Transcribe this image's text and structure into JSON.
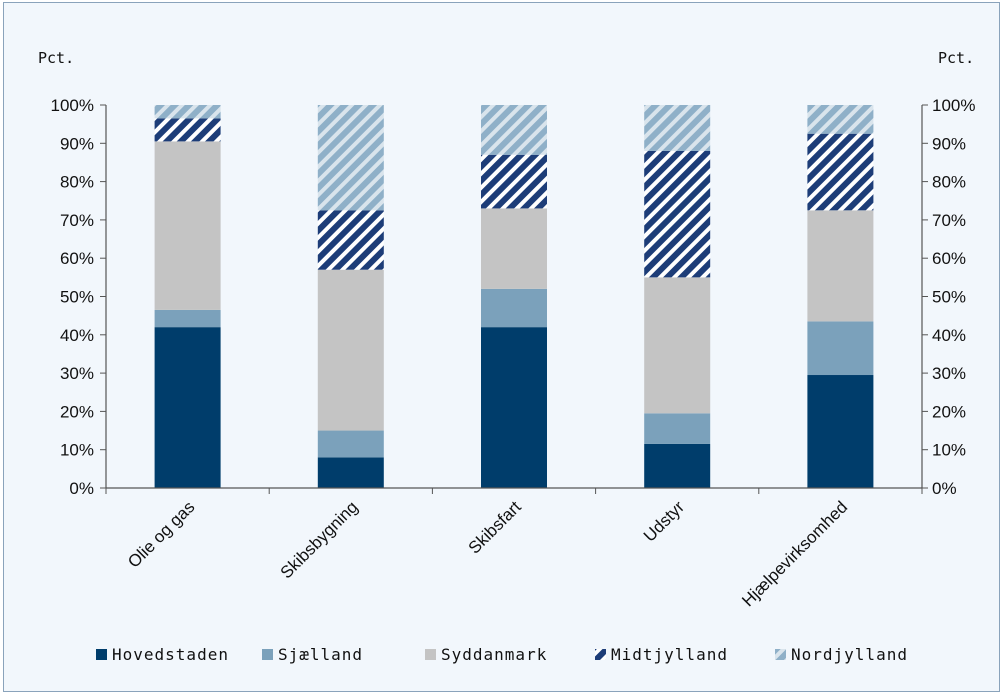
{
  "chart_data": {
    "type": "bar",
    "stacked": true,
    "normalized": true,
    "y_unit_left": "Pct.",
    "y_unit_right": "Pct.",
    "ylim": [
      0,
      100
    ],
    "yticks": [
      "0%",
      "10%",
      "20%",
      "30%",
      "40%",
      "50%",
      "60%",
      "70%",
      "80%",
      "90%",
      "100%"
    ],
    "grid": false,
    "legend_position": "bottom",
    "categories": [
      "Olie og gas",
      "Skibsbygning",
      "Skibsfart",
      "Udstyr",
      "Hjælpevirksomhed"
    ],
    "series": [
      {
        "name": "Hovedstaden",
        "color": "#003d6b",
        "pattern": "solid",
        "values": [
          42,
          8,
          42,
          11.5,
          29.5
        ]
      },
      {
        "name": "Sjælland",
        "color": "#7ba1bb",
        "pattern": "solid",
        "values": [
          4.5,
          7,
          10,
          8,
          14
        ]
      },
      {
        "name": "Syddanmark",
        "color": "#c4c4c4",
        "pattern": "solid",
        "values": [
          44,
          42,
          21,
          35.5,
          29
        ]
      },
      {
        "name": "Midtjylland",
        "color": "#1d3d78",
        "pattern": "diagonal-stripes",
        "values": [
          6,
          15.5,
          14,
          33,
          20
        ]
      },
      {
        "name": "Nordjylland",
        "color": "#8fb0c8",
        "pattern": "diagonal-stripes",
        "values": [
          3.5,
          27.5,
          13,
          12,
          7.5
        ]
      }
    ]
  }
}
